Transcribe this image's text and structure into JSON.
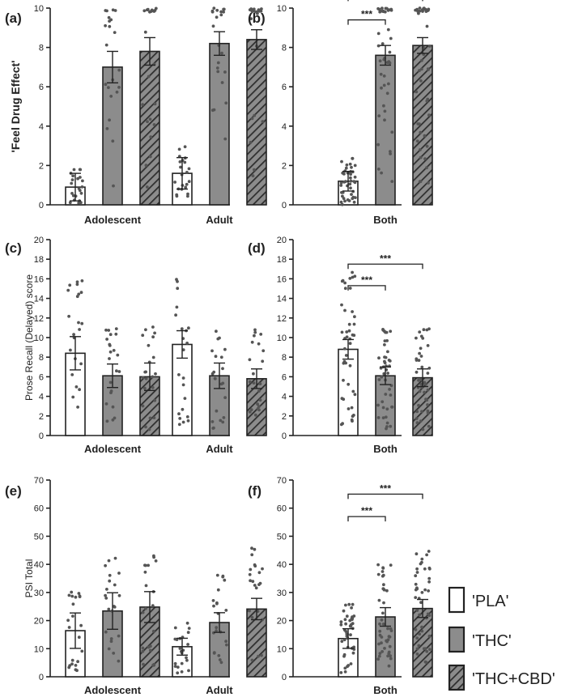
{
  "legend": [
    {
      "key": "PLA",
      "label": "'PLA'",
      "style": "open"
    },
    {
      "key": "THC",
      "label": "'THC'",
      "style": "gray"
    },
    {
      "key": "THCCBD",
      "label": "'THC+CBD'",
      "style": "hatch"
    }
  ],
  "colors": {
    "gray_fill": "#8c8c8c",
    "open_fill": "#ffffff",
    "stroke": "#222222",
    "dots": "#555555"
  },
  "chart_data": [
    {
      "panel": "(a)",
      "type": "bar",
      "ylabel": "'Feel Drug Effect'",
      "ylim": [
        0,
        10
      ],
      "yticks": [
        0,
        2,
        4,
        6,
        8,
        10
      ],
      "categories": [
        "Adolescent",
        "Adult"
      ],
      "series": [
        {
          "key": "PLA",
          "values": [
            0.9,
            1.6
          ],
          "err": [
            0.7,
            0.8
          ]
        },
        {
          "key": "THC",
          "values": [
            7.0,
            8.2
          ],
          "err": [
            0.8,
            0.6
          ]
        },
        {
          "key": "THCCBD",
          "values": [
            7.8,
            8.4
          ],
          "err": [
            0.7,
            0.5
          ]
        }
      ],
      "significance": []
    },
    {
      "panel": "(b)",
      "type": "bar",
      "ylabel": "",
      "ylim": [
        0,
        10
      ],
      "yticks": [
        0,
        2,
        4,
        6,
        8,
        10
      ],
      "categories": [
        "Both"
      ],
      "series": [
        {
          "key": "PLA",
          "values": [
            1.2
          ],
          "err": [
            0.5
          ]
        },
        {
          "key": "THC",
          "values": [
            7.6
          ],
          "err": [
            0.5
          ]
        },
        {
          "key": "THCCBD",
          "values": [
            8.1
          ],
          "err": [
            0.4
          ]
        }
      ],
      "significance": [
        {
          "from": 0,
          "to": 1,
          "y": 9.4,
          "label": "***"
        },
        {
          "from": 0,
          "to": 2,
          "y": 10.6,
          "label": "***"
        }
      ]
    },
    {
      "panel": "(c)",
      "type": "bar",
      "ylabel": "Prose Recall (Delayed) score",
      "ylim": [
        0,
        20
      ],
      "yticks": [
        0,
        2,
        4,
        6,
        8,
        10,
        12,
        14,
        16,
        18,
        20
      ],
      "categories": [
        "Adolescent",
        "Adult"
      ],
      "series": [
        {
          "key": "PLA",
          "values": [
            8.4,
            9.3
          ],
          "err": [
            1.7,
            1.4
          ]
        },
        {
          "key": "THC",
          "values": [
            6.1,
            6.1
          ],
          "err": [
            1.2,
            1.3
          ]
        },
        {
          "key": "THCCBD",
          "values": [
            6.0,
            5.8
          ],
          "err": [
            1.4,
            1.0
          ]
        }
      ],
      "significance": []
    },
    {
      "panel": "(d)",
      "type": "bar",
      "ylabel": "",
      "ylim": [
        0,
        20
      ],
      "yticks": [
        0,
        2,
        4,
        6,
        8,
        10,
        12,
        14,
        16,
        18,
        20
      ],
      "categories": [
        "Both"
      ],
      "series": [
        {
          "key": "PLA",
          "values": [
            8.8
          ],
          "err": [
            1.0
          ]
        },
        {
          "key": "THC",
          "values": [
            6.1
          ],
          "err": [
            0.9
          ]
        },
        {
          "key": "THCCBD",
          "values": [
            5.9
          ],
          "err": [
            0.9
          ]
        }
      ],
      "significance": [
        {
          "from": 0,
          "to": 1,
          "y": 15.3,
          "label": "***"
        },
        {
          "from": 0,
          "to": 2,
          "y": 17.5,
          "label": "***"
        }
      ]
    },
    {
      "panel": "(e)",
      "type": "bar",
      "ylabel": "PSI Total",
      "ylim": [
        0,
        70
      ],
      "yticks": [
        0,
        10,
        20,
        30,
        40,
        50,
        60,
        70
      ],
      "categories": [
        "Adolescent",
        "Adult"
      ],
      "series": [
        {
          "key": "PLA",
          "values": [
            16.4,
            10.7
          ],
          "err": [
            6.3,
            3.0
          ]
        },
        {
          "key": "THC",
          "values": [
            23.4,
            19.3
          ],
          "err": [
            6.5,
            3.5
          ]
        },
        {
          "key": "THCCBD",
          "values": [
            24.8,
            24.1
          ],
          "err": [
            5.5,
            3.8
          ]
        }
      ],
      "significance": []
    },
    {
      "panel": "(f)",
      "type": "bar",
      "ylabel": "",
      "ylim": [
        0,
        70
      ],
      "yticks": [
        0,
        10,
        20,
        30,
        40,
        50,
        60,
        70
      ],
      "categories": [
        "Both"
      ],
      "series": [
        {
          "key": "PLA",
          "values": [
            13.6
          ],
          "err": [
            3.5
          ]
        },
        {
          "key": "THC",
          "values": [
            21.3
          ],
          "err": [
            3.3
          ]
        },
        {
          "key": "THCCBD",
          "values": [
            24.3
          ],
          "err": [
            3.2
          ]
        }
      ],
      "significance": [
        {
          "from": 0,
          "to": 1,
          "y": 57,
          "label": "***"
        },
        {
          "from": 0,
          "to": 2,
          "y": 65,
          "label": "***"
        }
      ]
    }
  ]
}
